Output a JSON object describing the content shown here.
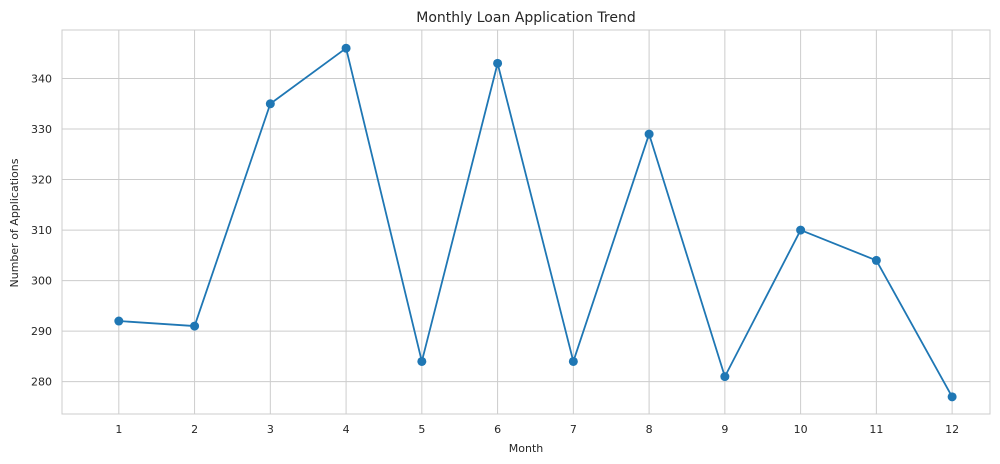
{
  "chart_data": {
    "type": "line",
    "title": "Monthly Loan Application Trend",
    "xlabel": "Month",
    "ylabel": "Number of Applications",
    "x": [
      1,
      2,
      3,
      4,
      5,
      6,
      7,
      8,
      9,
      10,
      11,
      12
    ],
    "x_tick_labels": [
      "1",
      "2",
      "3",
      "4",
      "5",
      "6",
      "7",
      "8",
      "9",
      "10",
      "11",
      "12"
    ],
    "series": [
      {
        "values": [
          292,
          291,
          335,
          346,
          284,
          343,
          284,
          329,
          281,
          310,
          304,
          277
        ]
      }
    ],
    "xlim": [
      0.25,
      12.5
    ],
    "ylim": [
      273.6,
      349.6
    ],
    "y_ticks": [
      280,
      290,
      300,
      310,
      320,
      330,
      340
    ],
    "y_tick_labels": [
      "280",
      "290",
      "300",
      "310",
      "320",
      "330",
      "340"
    ],
    "grid": true,
    "markers": true,
    "line_color": "#1f77b4",
    "grid_color": "#cccccc"
  }
}
